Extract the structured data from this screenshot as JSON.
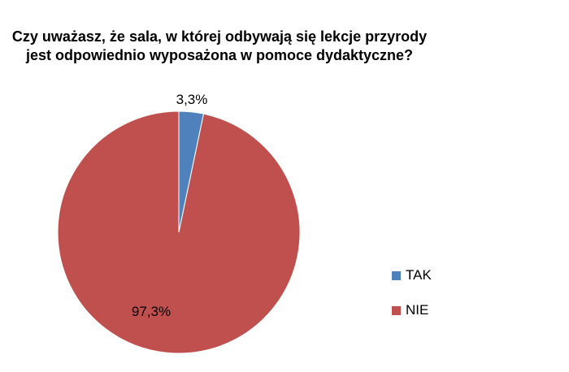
{
  "chart_data": {
    "type": "pie",
    "title": [
      "Czy uważasz, że sala, w której odbywają się lekcje przyrody",
      "jest odpowiednio wyposażona w pomoce dydaktyczne?"
    ],
    "categories": [
      "TAK",
      "NIE"
    ],
    "values": [
      3.3,
      97.3
    ],
    "data_labels": [
      "3,3%",
      "97,3%"
    ],
    "colors": [
      "#4F81BD",
      "#C0504D"
    ],
    "legend": "right"
  }
}
